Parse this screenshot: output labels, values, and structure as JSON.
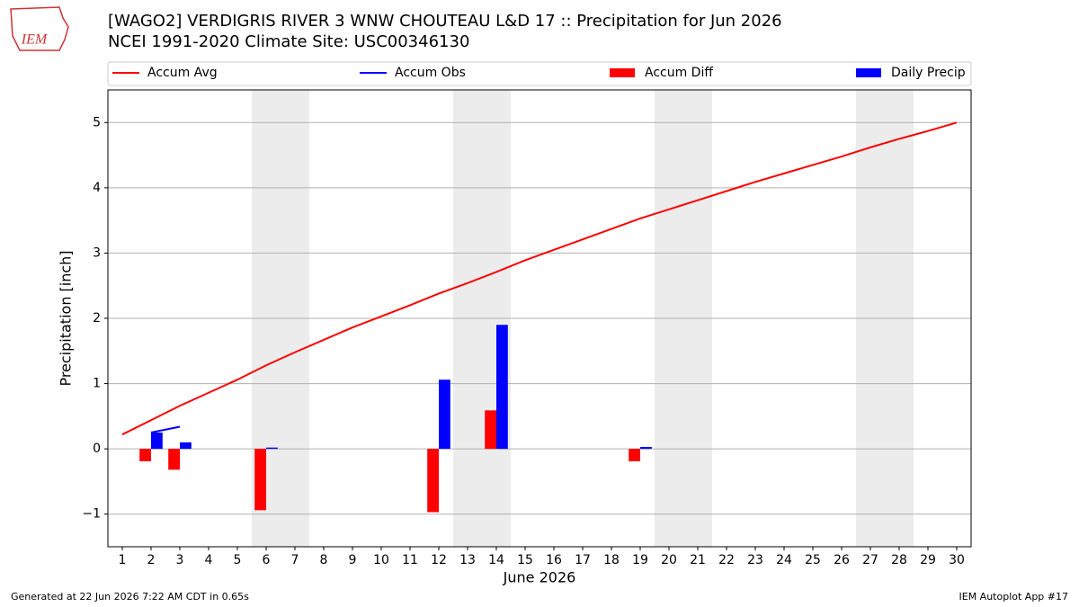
{
  "logo_text": "IEM",
  "footer_left": "Generated at 22 Jun 2026 7:22 AM CDT in 0.65s",
  "footer_right": "IEM Autoplot App #17",
  "chart_data": {
    "type": "bar",
    "title": "[WAGO2] VERDIGRIS RIVER 3 WNW CHOUTEAU L&D 17 :: Precipitation for Jun 2026",
    "subtitle": "NCEI 1991-2020 Climate Site: USC00346130",
    "x_label": "June 2026",
    "y_label": "Precipitation [inch]",
    "x": [
      1,
      2,
      3,
      4,
      5,
      6,
      7,
      8,
      9,
      10,
      11,
      12,
      13,
      14,
      15,
      16,
      17,
      18,
      19,
      20,
      21,
      22,
      23,
      24,
      25,
      26,
      27,
      28,
      29,
      30
    ],
    "xlim": [
      0.5,
      30.5
    ],
    "xticks": [
      1,
      2,
      3,
      4,
      5,
      6,
      7,
      8,
      9,
      10,
      11,
      12,
      13,
      14,
      15,
      16,
      17,
      18,
      19,
      20,
      21,
      22,
      23,
      24,
      25,
      26,
      27,
      28,
      29,
      30
    ],
    "ylim": [
      -1.5,
      5.5
    ],
    "yticks": [
      {
        "value": -1,
        "label": "−1"
      },
      0,
      1,
      2,
      3,
      4,
      5
    ],
    "grid": true,
    "weekends": [
      6,
      7,
      13,
      14,
      20,
      21,
      27,
      28
    ],
    "legend": "top",
    "series": [
      {
        "name": "Accum Avg",
        "type": "line",
        "color": "#ff0000",
        "values": [
          0.22,
          0.44,
          0.66,
          0.86,
          1.06,
          1.28,
          1.48,
          1.67,
          1.86,
          2.03,
          2.2,
          2.38,
          2.54,
          2.71,
          2.89,
          3.05,
          3.21,
          3.37,
          3.53,
          3.67,
          3.81,
          3.95,
          4.09,
          4.22,
          4.35,
          4.48,
          4.62,
          4.75,
          4.87,
          5.0
        ]
      },
      {
        "name": "Accum Obs",
        "type": "line",
        "color": "#0000ff",
        "values": [
          null,
          0.25,
          0.34,
          null,
          null,
          null,
          null,
          null,
          null,
          null,
          null,
          null,
          null,
          null,
          null,
          null,
          null,
          null,
          null,
          null,
          null,
          null,
          null,
          null,
          null,
          null,
          null,
          null,
          null,
          null
        ]
      },
      {
        "name": "Accum Diff",
        "type": "bar",
        "offset": "left",
        "color": "#ff0000",
        "values": [
          null,
          -0.19,
          -0.32,
          null,
          null,
          -0.94,
          null,
          null,
          null,
          null,
          null,
          -0.97,
          null,
          0.59,
          null,
          null,
          null,
          null,
          -0.19,
          null,
          null,
          null,
          null,
          null,
          null,
          null,
          null,
          null,
          null,
          null
        ]
      },
      {
        "name": "Daily Precip",
        "type": "bar",
        "offset": "right",
        "color": "#0000ff",
        "values": [
          null,
          0.25,
          0.1,
          null,
          null,
          0.02,
          null,
          null,
          null,
          null,
          null,
          1.06,
          null,
          1.9,
          null,
          null,
          null,
          null,
          0.03,
          null,
          null,
          null,
          null,
          null,
          null,
          null,
          null,
          null,
          null,
          null
        ]
      }
    ]
  }
}
